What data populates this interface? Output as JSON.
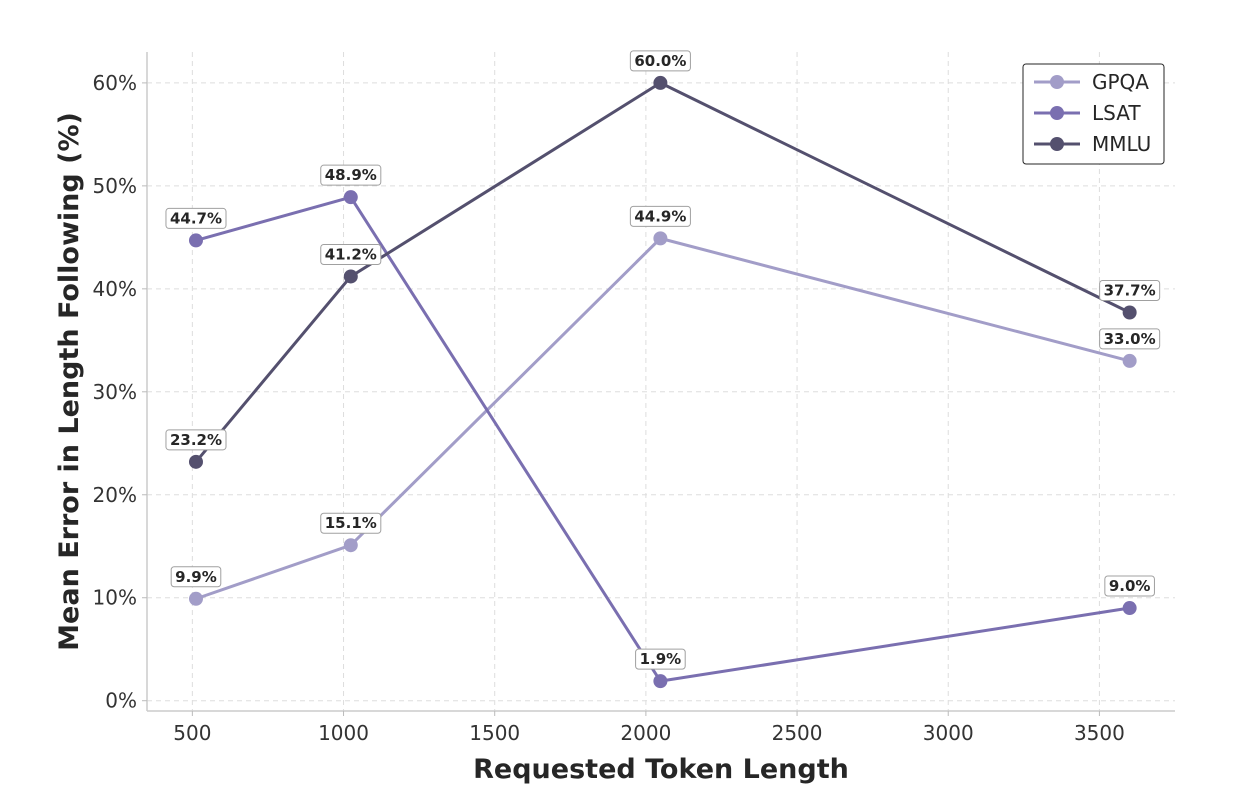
{
  "chart_data": {
    "type": "line",
    "title": "",
    "xlabel": "Requested Token Length",
    "ylabel": "Mean Error in Length Following (%)",
    "x": [
      512,
      1024,
      2048,
      3600
    ],
    "xlim": [
      350,
      3750
    ],
    "ylim": [
      -1,
      63
    ],
    "xticks": [
      500,
      1000,
      1500,
      2000,
      2500,
      3000,
      3500
    ],
    "yticks": [
      0,
      10,
      20,
      30,
      40,
      50,
      60
    ],
    "ytick_suffix": "%",
    "grid": true,
    "legend_position": "top-right",
    "series": [
      {
        "name": "GPQA",
        "color": "#a29dc8",
        "values": [
          9.9,
          15.1,
          44.9,
          33.0
        ],
        "labels": [
          "9.9%",
          "15.1%",
          "44.9%",
          "33.0%"
        ]
      },
      {
        "name": "LSAT",
        "color": "#7a6fb0",
        "values": [
          44.7,
          48.9,
          1.9,
          9.0
        ],
        "labels": [
          "44.7%",
          "48.9%",
          "1.9%",
          "9.0%"
        ]
      },
      {
        "name": "MMLU",
        "color": "#54506e",
        "values": [
          23.2,
          41.2,
          60.0,
          37.7
        ],
        "labels": [
          "23.2%",
          "41.2%",
          "60.0%",
          "37.7%"
        ]
      }
    ]
  }
}
